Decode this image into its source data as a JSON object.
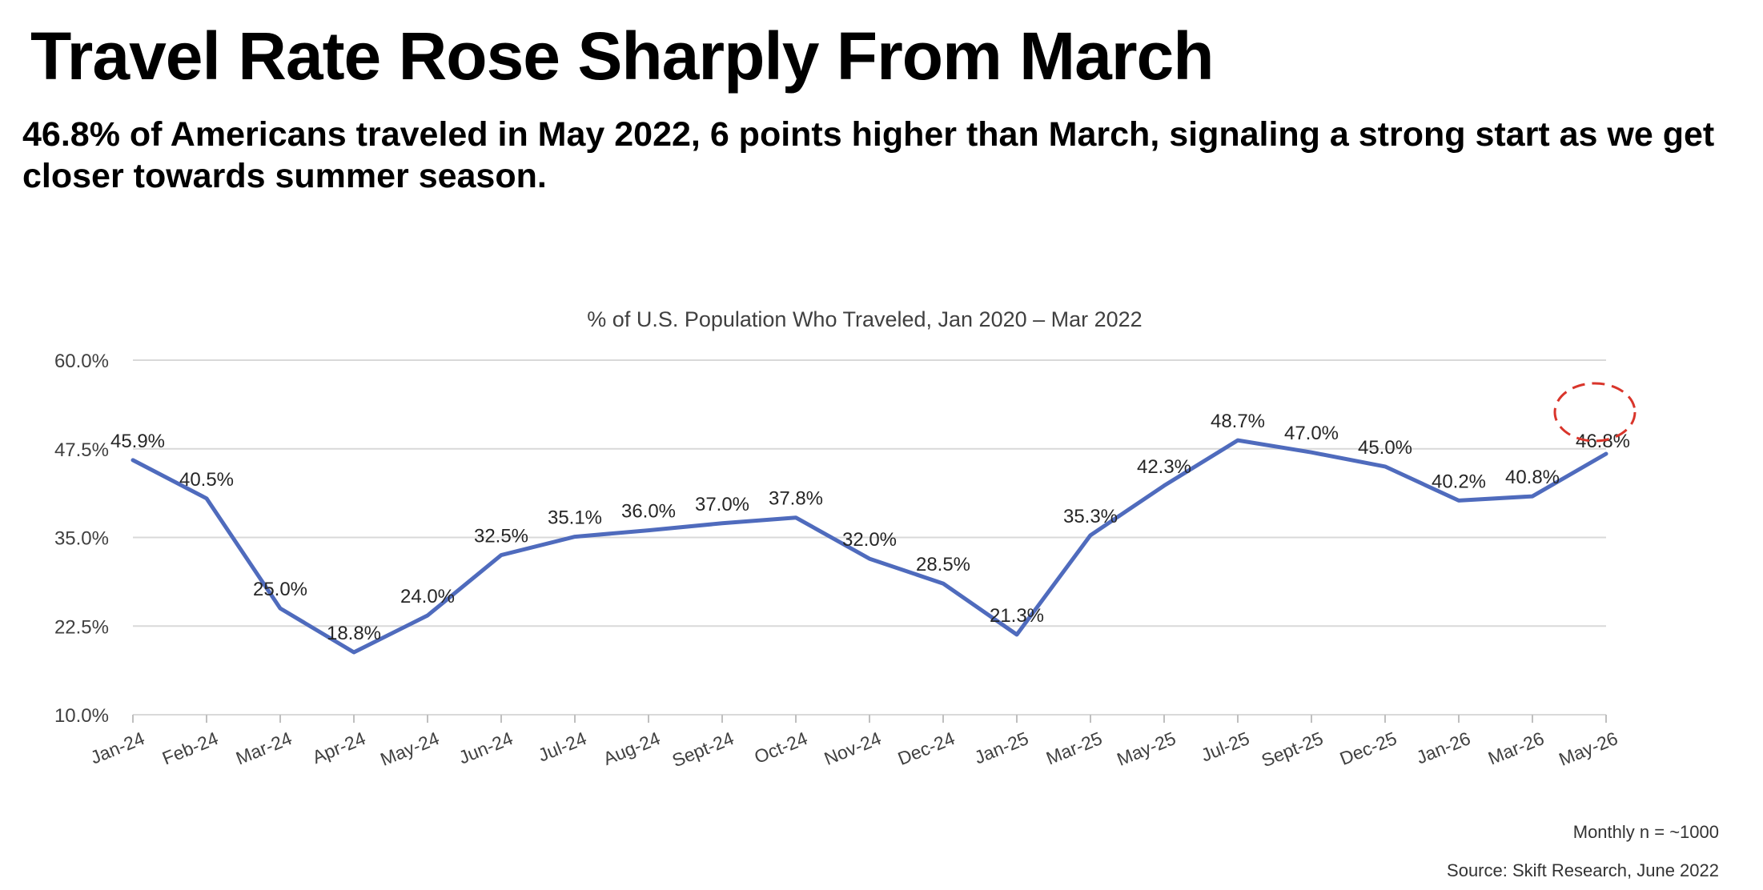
{
  "headline": "Travel Rate Rose Sharply From March",
  "subhead": "46.8% of Americans traveled in May 2022, 6 points higher than March, signaling a strong start as we get closer towards summer season.",
  "footnotes": {
    "sample": "Monthly n = ~1000",
    "source": "Source: Skift Research, June 2022"
  },
  "colors": {
    "line": "#4f6bbd",
    "grid": "#d9d9d9",
    "highlight": "#d9352b"
  },
  "chart_data": {
    "type": "line",
    "title": "% of U.S. Population Who Traveled, Jan 2020 – Mar 2022",
    "xlabel": "",
    "ylabel": "",
    "ylim": [
      10,
      60
    ],
    "y_ticks": [
      "10.0%",
      "22.5%",
      "35.0%",
      "47.5%",
      "60.0%"
    ],
    "y_tick_values": [
      10,
      22.5,
      35,
      47.5,
      60
    ],
    "grid": true,
    "legend": "none",
    "categories": [
      "Jan-24",
      "Feb-24",
      "Mar-24",
      "Apr-24",
      "May-24",
      "Jun-24",
      "Jul-24",
      "Aug-24",
      "Sept-24",
      "Oct-24",
      "Nov-24",
      "Dec-24",
      "Jan-25",
      "Mar-25",
      "May-25",
      "Jul-25",
      "Sept-25",
      "Dec-25",
      "Jan-26",
      "Mar-26",
      "May-26"
    ],
    "series": [
      {
        "values": [
          45.9,
          40.5,
          25.0,
          18.8,
          24.0,
          32.5,
          35.1,
          36.0,
          37.0,
          37.8,
          32.0,
          28.5,
          21.3,
          35.3,
          42.3,
          48.7,
          47.0,
          45.0,
          40.2,
          40.8,
          46.8
        ],
        "labels": [
          "45.9%",
          "40.5%",
          "25.0%",
          "18.8%",
          "24.0%",
          "32.5%",
          "35.1%",
          "36.0%",
          "37.0%",
          "37.8%",
          "32.0%",
          "28.5%",
          "21.3%",
          "35.3%",
          "42.3%",
          "48.7%",
          "47.0%",
          "45.0%",
          "40.2%",
          "40.8%",
          "46.8%"
        ]
      }
    ],
    "annotations": [
      {
        "type": "dashed-circle",
        "category": "May-26"
      }
    ]
  }
}
